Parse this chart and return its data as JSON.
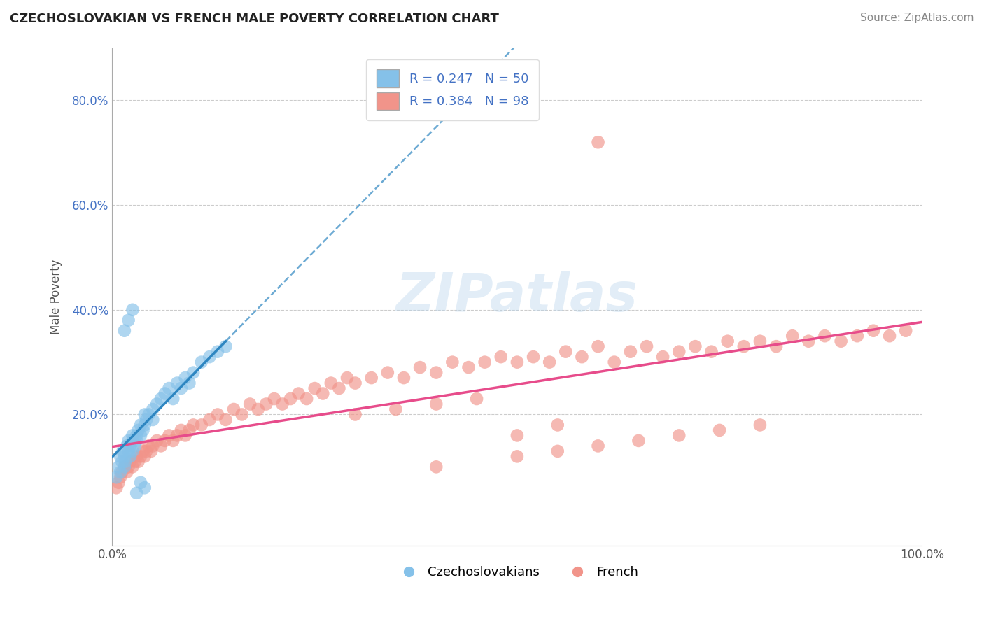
{
  "title": "CZECHOSLOVAKIAN VS FRENCH MALE POVERTY CORRELATION CHART",
  "source_text": "Source: ZipAtlas.com",
  "ylabel": "Male Poverty",
  "xlim": [
    0.0,
    1.0
  ],
  "ylim": [
    -0.05,
    0.9
  ],
  "color_czech": "#85C1E9",
  "color_french": "#F1948A",
  "color_czech_line": "#2E86C1",
  "color_french_line": "#E74C8B",
  "legend_label_czech": "Czechoslovakians",
  "legend_label_french": "French",
  "R_czech": 0.247,
  "N_czech": 50,
  "R_french": 0.384,
  "N_french": 98,
  "watermark": "ZIPatlas",
  "background_color": "#FFFFFF",
  "grid_color": "#CCCCCC",
  "czech_x": [
    0.005,
    0.008,
    0.01,
    0.01,
    0.012,
    0.013,
    0.015,
    0.015,
    0.016,
    0.018,
    0.02,
    0.02,
    0.022,
    0.022,
    0.025,
    0.025,
    0.025,
    0.028,
    0.03,
    0.03,
    0.032,
    0.035,
    0.035,
    0.038,
    0.04,
    0.04,
    0.042,
    0.045,
    0.05,
    0.05,
    0.055,
    0.06,
    0.065,
    0.07,
    0.075,
    0.08,
    0.085,
    0.09,
    0.095,
    0.1,
    0.11,
    0.12,
    0.13,
    0.14,
    0.015,
    0.02,
    0.025,
    0.03,
    0.035,
    0.04
  ],
  "czech_y": [
    0.08,
    0.1,
    0.12,
    0.09,
    0.11,
    0.13,
    0.1,
    0.12,
    0.11,
    0.14,
    0.13,
    0.15,
    0.14,
    0.12,
    0.15,
    0.13,
    0.16,
    0.14,
    0.15,
    0.16,
    0.17,
    0.16,
    0.18,
    0.17,
    0.18,
    0.2,
    0.19,
    0.2,
    0.19,
    0.21,
    0.22,
    0.23,
    0.24,
    0.25,
    0.23,
    0.26,
    0.25,
    0.27,
    0.26,
    0.28,
    0.3,
    0.31,
    0.32,
    0.33,
    0.36,
    0.38,
    0.4,
    0.05,
    0.07,
    0.06
  ],
  "french_x": [
    0.005,
    0.008,
    0.01,
    0.012,
    0.015,
    0.018,
    0.02,
    0.022,
    0.025,
    0.028,
    0.03,
    0.032,
    0.035,
    0.038,
    0.04,
    0.042,
    0.045,
    0.048,
    0.05,
    0.055,
    0.06,
    0.065,
    0.07,
    0.075,
    0.08,
    0.085,
    0.09,
    0.095,
    0.1,
    0.11,
    0.12,
    0.13,
    0.14,
    0.15,
    0.16,
    0.17,
    0.18,
    0.19,
    0.2,
    0.21,
    0.22,
    0.23,
    0.24,
    0.25,
    0.26,
    0.27,
    0.28,
    0.29,
    0.3,
    0.32,
    0.34,
    0.36,
    0.38,
    0.4,
    0.42,
    0.44,
    0.46,
    0.48,
    0.5,
    0.52,
    0.54,
    0.56,
    0.58,
    0.6,
    0.62,
    0.64,
    0.66,
    0.68,
    0.7,
    0.72,
    0.74,
    0.76,
    0.78,
    0.8,
    0.82,
    0.84,
    0.86,
    0.88,
    0.9,
    0.92,
    0.94,
    0.96,
    0.98,
    0.3,
    0.35,
    0.4,
    0.45,
    0.5,
    0.55,
    0.6,
    0.4,
    0.5,
    0.55,
    0.6,
    0.65,
    0.7,
    0.75,
    0.8
  ],
  "french_y": [
    0.06,
    0.07,
    0.08,
    0.09,
    0.1,
    0.09,
    0.1,
    0.11,
    0.1,
    0.11,
    0.12,
    0.11,
    0.12,
    0.13,
    0.12,
    0.13,
    0.14,
    0.13,
    0.14,
    0.15,
    0.14,
    0.15,
    0.16,
    0.15,
    0.16,
    0.17,
    0.16,
    0.17,
    0.18,
    0.18,
    0.19,
    0.2,
    0.19,
    0.21,
    0.2,
    0.22,
    0.21,
    0.22,
    0.23,
    0.22,
    0.23,
    0.24,
    0.23,
    0.25,
    0.24,
    0.26,
    0.25,
    0.27,
    0.26,
    0.27,
    0.28,
    0.27,
    0.29,
    0.28,
    0.3,
    0.29,
    0.3,
    0.31,
    0.3,
    0.31,
    0.3,
    0.32,
    0.31,
    0.33,
    0.3,
    0.32,
    0.33,
    0.31,
    0.32,
    0.33,
    0.32,
    0.34,
    0.33,
    0.34,
    0.33,
    0.35,
    0.34,
    0.35,
    0.34,
    0.35,
    0.36,
    0.35,
    0.36,
    0.2,
    0.21,
    0.22,
    0.23,
    0.16,
    0.18,
    0.72,
    0.1,
    0.12,
    0.13,
    0.14,
    0.15,
    0.16,
    0.17,
    0.18
  ]
}
